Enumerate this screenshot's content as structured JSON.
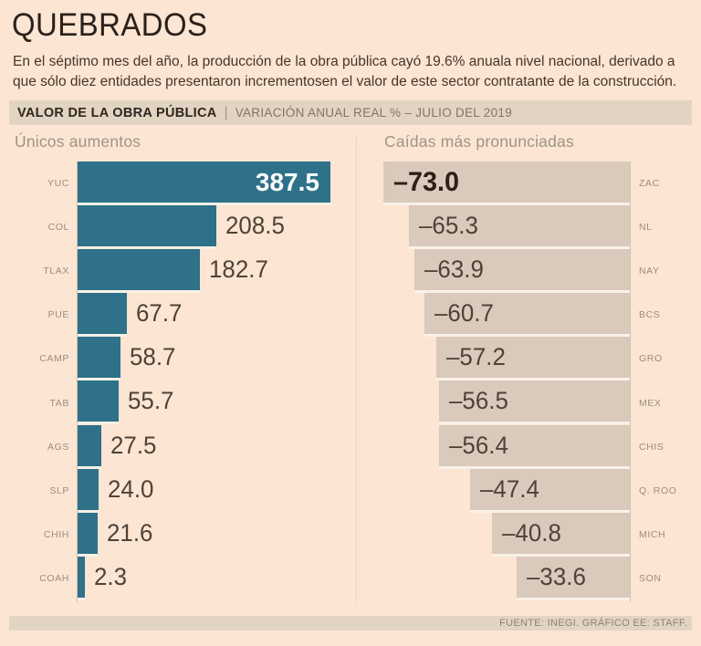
{
  "title": "QUEBRADOS",
  "subtitle": "En el séptimo mes del año, la producción de la obra pública cayó 19.6% anuala nivel nacional, derivado a que sólo diez entidades presentaron incrementosen el valor de este sector contratante de la construcción.",
  "kicker": {
    "label": "VALOR DE LA OBRA PÚBLICA",
    "divider": "|",
    "subtitle": "VARIACIÓN ANUAL REAL % – JULIO DEL 2019"
  },
  "footer": "FUENTE: INEGI. GRÁFICO EE: STAFF.",
  "colors": {
    "background": "#fde5d3",
    "positive_bar": "#2e7189",
    "negative_bar": "#d9cabb",
    "band_background": "#e2d4c3",
    "highlight_value_light": "#ffffff",
    "highlight_value_dark": "#2b2118",
    "value_text": "#4f4238"
  },
  "chart_data": [
    {
      "type": "bar",
      "orientation": "horizontal",
      "title": "Únicos aumentos",
      "units": "variación anual real %",
      "categories": [
        "YUC",
        "COL",
        "TLAX",
        "PUE",
        "CAMP",
        "TAB",
        "AGS",
        "SLP",
        "CHIH",
        "COAH"
      ],
      "values": [
        387.5,
        208.5,
        182.7,
        67.7,
        58.7,
        55.7,
        27.5,
        24.0,
        21.6,
        2.3
      ],
      "highlight_index": 0,
      "value_label_position": "first-inside-others-outside",
      "axis_side": "left"
    },
    {
      "type": "bar",
      "orientation": "horizontal",
      "title": "Caídas más pronunciadas",
      "units": "variación anual real %",
      "categories": [
        "ZAC",
        "NL",
        "NAY",
        "BCS",
        "GRO",
        "MEX",
        "CHIS",
        "Q. ROO",
        "MICH",
        "SON"
      ],
      "values": [
        -73.0,
        -65.3,
        -63.9,
        -60.7,
        -57.2,
        -56.5,
        -56.4,
        -47.4,
        -40.8,
        -33.6
      ],
      "highlight_index": 0,
      "value_label_position": "inside",
      "axis_side": "right"
    }
  ]
}
